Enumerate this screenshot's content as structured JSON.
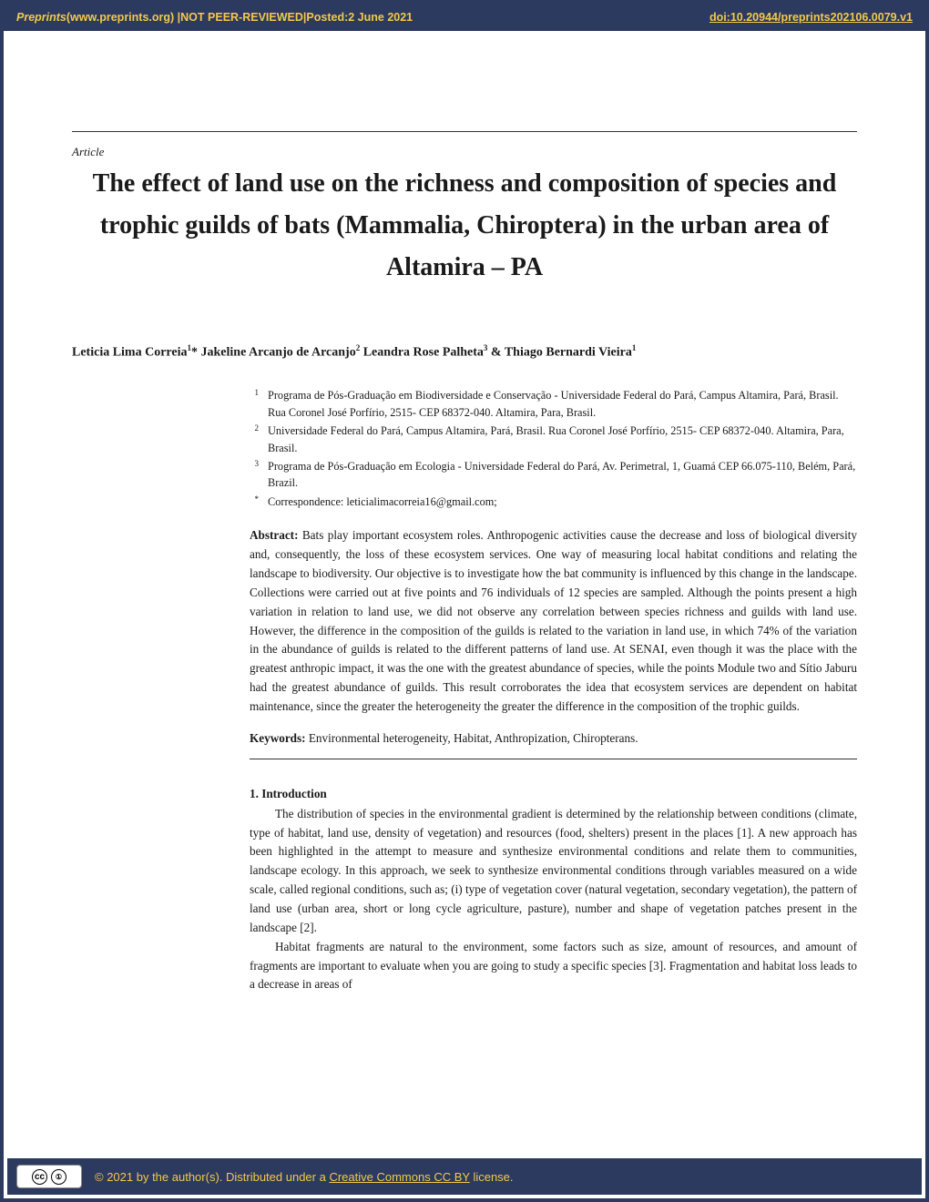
{
  "banner": {
    "site_name": "Preprints",
    "site_url_text": " (www.preprints.org)  |  ",
    "status": "NOT PEER-REVIEWED",
    "sep": "  |  ",
    "posted_label": "Posted: ",
    "posted_date": "2 June 2021",
    "doi": "doi:10.20944/preprints202106.0079.v1"
  },
  "article_label": "Article",
  "title": "The effect of land use on the richness and composition of species and trophic guilds of bats (Mammalia, Chiroptera) in the urban area of Altamira – PA",
  "authors_html_parts": {
    "a1": "Leticia Lima Correia",
    "s1": "1",
    "star": "*",
    "a2": " Jakeline Arcanjo de Arcanjo",
    "s2": "2",
    "a3": " Leandra Rose Palheta",
    "s3": "3",
    "amp": " & ",
    "a4": "Thiago Bernardi Vieira",
    "s4": "1"
  },
  "affiliations": [
    {
      "num": "1",
      "text": "Programa de Pós-Graduação em Biodiversidade e Conservação - Universidade Federal do Pará, Campus Altamira, Pará, Brasil. Rua Coronel José Porfírio, 2515- CEP 68372-040. Altamira, Para, Brasil."
    },
    {
      "num": "2",
      "text": "Universidade Federal do Pará, Campus Altamira, Pará, Brasil. Rua Coronel José Porfírio, 2515- CEP 68372-040. Altamira, Para, Brasil."
    },
    {
      "num": "3",
      "text": "Programa de Pós-Graduação em Ecologia - Universidade Federal do Pará, Av. Perimetral, 1, Guamá CEP 66.075-110, Belém, Pará, Brazil."
    },
    {
      "num": "*",
      "text": "Correspondence: leticialimacorreia16@gmail.com;"
    }
  ],
  "abstract_label": "Abstract: ",
  "abstract_text": "Bats play important ecosystem roles. Anthropogenic activities cause the decrease and loss of biological diversity and, consequently, the loss of these ecosystem services. One way of measuring local habitat conditions and relating the landscape to biodiversity. Our objective is to investigate how the bat community is influenced by this change in the landscape. Collections were carried out at five points and 76 individuals of 12 species are sampled. Although the points present a high variation in relation to land use, we did not observe any correlation between species richness and guilds with land use. However, the difference in the composition of the guilds is related to the variation in land use, in which 74% of the variation in the abundance of guilds is related to the different patterns of land use. At SENAI, even though it was the place with the greatest anthropic impact, it was the one with the greatest abundance of species, while the points Module two and Sítio Jaburu had the greatest abundance of guilds. This result corroborates the idea that ecosystem services are dependent on habitat maintenance, since the greater the heterogeneity the greater the difference in the composition of the trophic guilds.",
  "keywords_label": "Keywords: ",
  "keywords_text": "Environmental heterogeneity, Habitat, Anthropization, Chiropterans.",
  "section1_head": "1. Introduction",
  "intro_p1": "The distribution of species in the environmental gradient is determined by the relationship between conditions (climate, type of habitat, land use, density of vegetation) and resources (food, shelters) present in the places [1]. A new approach has been highlighted in the attempt to measure and synthesize environmental conditions and relate them to communities, landscape ecology. In this approach, we seek to synthesize environmental conditions through variables measured on a wide scale, called regional conditions, such as; (i) type of vegetation cover (natural vegetation, secondary vegetation), the pattern of land use (urban area, short or long cycle agriculture, pasture), number and shape of vegetation patches present in the landscape [2].",
  "intro_p2": "Habitat fragments are natural to the environment, some factors such as size, amount of resources, and amount of fragments are important to evaluate when you are going to study a specific species [3]. Fragmentation and habitat loss leads to a decrease in areas of",
  "footer": {
    "cc_label": "cc",
    "by_label": "BY",
    "copyright_prefix": "©  2021 by the author(s). Distributed under a ",
    "license_link": "Creative Commons CC BY",
    "copyright_suffix": " license."
  },
  "colors": {
    "banner_bg": "#2b3a5e",
    "banner_fg": "#f2c94c"
  }
}
